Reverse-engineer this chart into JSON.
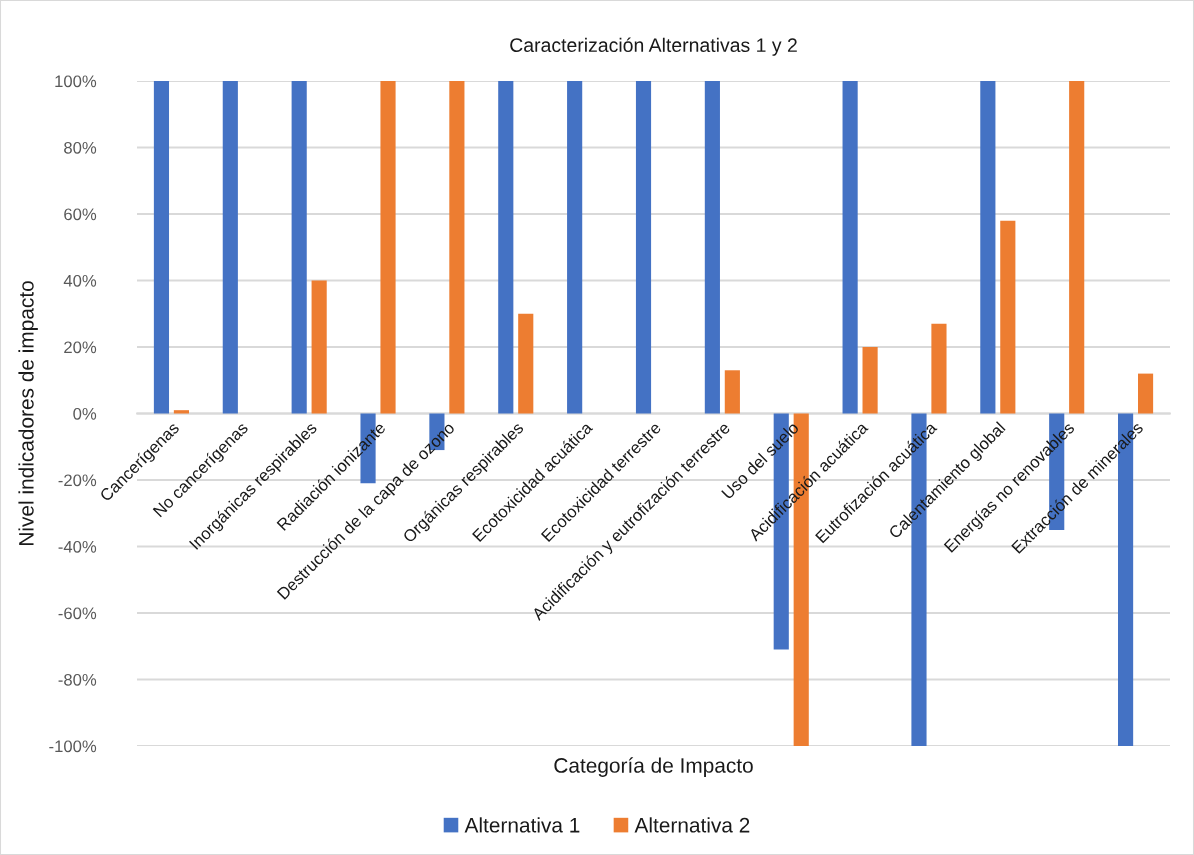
{
  "chart_data": {
    "type": "bar",
    "title": "Caracterización Alternativas 1 y 2",
    "xlabel": "Categoría de Impacto",
    "ylabel": "Nivel indicadores de impacto",
    "categories": [
      "Cancerígenas",
      "No cancerígenas",
      "Inorgánicas respirables",
      "Radiación ionizante",
      "Destrucción de la capa de ozono",
      "Orgánicas respirables",
      "Ecotoxicidad acuática",
      "Ecotoxicidad terrestre",
      "Acidificación y eutrofización terrestre",
      "Uso del suelo",
      "Acidificación acuática",
      "Eutrofización acuática",
      "Calentamiento global",
      "Energías no renovables",
      "Extracción de minerales"
    ],
    "series": [
      {
        "name": "Alternativa 1",
        "color": "#4472c4",
        "values": [
          100,
          100,
          100,
          -21,
          -11,
          100,
          100,
          100,
          100,
          -71,
          100,
          -100,
          100,
          -35,
          -100
        ]
      },
      {
        "name": "Alternativa 2",
        "color": "#ed7d31",
        "values": [
          1,
          null,
          40,
          100,
          100,
          30,
          null,
          null,
          13,
          -100,
          20,
          27,
          58,
          100,
          12
        ]
      }
    ],
    "ylim": [
      -100,
      100
    ],
    "yticks": [
      {
        "value": -100,
        "label": "-100%"
      },
      {
        "value": -80,
        "label": "-80%"
      },
      {
        "value": -60,
        "label": "-60%"
      },
      {
        "value": -40,
        "label": "-40%"
      },
      {
        "value": -20,
        "label": "-20%"
      },
      {
        "value": 0,
        "label": "0%"
      },
      {
        "value": 20,
        "label": "20%"
      },
      {
        "value": 40,
        "label": "40%"
      },
      {
        "value": 60,
        "label": "60%"
      },
      {
        "value": 80,
        "label": "80%"
      },
      {
        "value": 100,
        "label": "100%"
      }
    ],
    "grid": "y",
    "legend": "bottom"
  }
}
